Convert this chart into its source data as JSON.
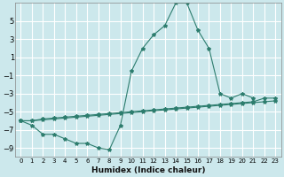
{
  "xlabel": "Humidex (Indice chaleur)",
  "bg_color": "#cce8ec",
  "grid_color": "#ffffff",
  "line_color": "#2d7d6e",
  "marker": "*",
  "xlim": [
    -0.5,
    23.5
  ],
  "ylim": [
    -10,
    7
  ],
  "yticks": [
    -9,
    -7,
    -5,
    -3,
    -1,
    1,
    3,
    5
  ],
  "xticks": [
    0,
    1,
    2,
    3,
    4,
    5,
    6,
    7,
    8,
    9,
    10,
    11,
    12,
    13,
    14,
    15,
    16,
    17,
    18,
    19,
    20,
    21,
    22,
    23
  ],
  "series": [
    {
      "x": [
        0,
        1,
        2,
        3,
        4,
        5,
        6,
        7,
        8,
        9,
        10,
        11,
        12,
        13,
        14,
        15,
        16,
        17,
        18,
        19,
        20,
        21
      ],
      "y": [
        -6.0,
        -6.5,
        -7.5,
        -7.5,
        -8.0,
        -8.5,
        -8.5,
        -9.0,
        -9.2,
        -6.5,
        -0.5,
        2.0,
        3.5,
        4.5,
        7.0,
        7.0,
        4.0,
        2.0,
        -3.0,
        -3.5,
        -3.0,
        -3.5
      ]
    },
    {
      "x": [
        0,
        1,
        2,
        3,
        4,
        5,
        6,
        7,
        8,
        9,
        10,
        11,
        12,
        13,
        14,
        15,
        16,
        17,
        18,
        19,
        20,
        21,
        22,
        23
      ],
      "y": [
        -6.0,
        -6.0,
        -5.9,
        -5.8,
        -5.7,
        -5.6,
        -5.5,
        -5.4,
        -5.3,
        -5.2,
        -5.1,
        -5.0,
        -4.9,
        -4.8,
        -4.7,
        -4.6,
        -4.5,
        -4.4,
        -4.3,
        -4.2,
        -4.1,
        -4.0,
        -3.9,
        -3.8
      ]
    },
    {
      "x": [
        0,
        1,
        2,
        3,
        4,
        5,
        6,
        7,
        8,
        9,
        10,
        11,
        12,
        13,
        14,
        15,
        16,
        17,
        18,
        19,
        20,
        21,
        22,
        23
      ],
      "y": [
        -6.0,
        -6.0,
        -5.8,
        -5.7,
        -5.6,
        -5.5,
        -5.4,
        -5.3,
        -5.2,
        -5.1,
        -5.0,
        -4.9,
        -4.8,
        -4.7,
        -4.6,
        -4.5,
        -4.4,
        -4.3,
        -4.2,
        -4.1,
        -4.0,
        -3.9,
        -3.5,
        -3.5
      ]
    }
  ]
}
